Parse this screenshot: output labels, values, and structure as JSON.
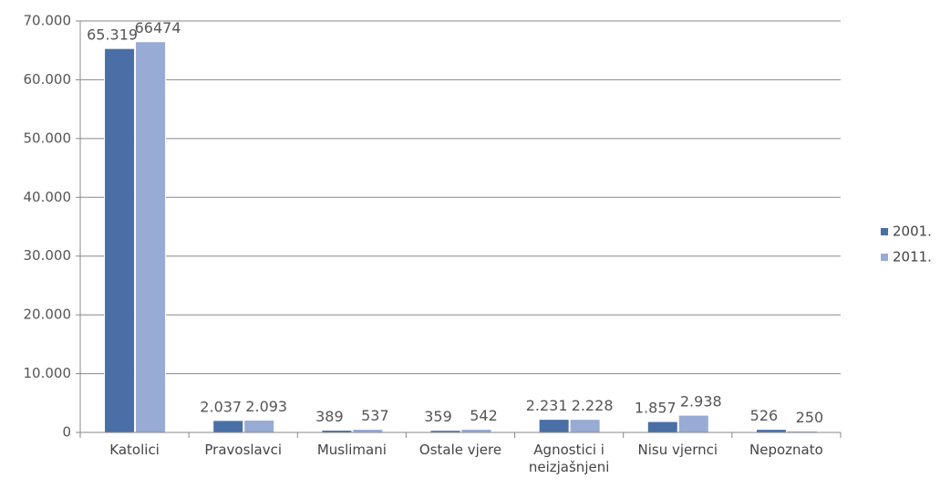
{
  "chart_data": {
    "type": "bar",
    "categories": [
      "Katolici",
      "Pravoslavci",
      "Muslimani",
      "Ostale vjere",
      "Agnostici i neizjašnjeni",
      "Nisu vjernci",
      "Nepoznato"
    ],
    "series": [
      {
        "name": "2001.",
        "color": "#4a6fa6",
        "values": [
          65319,
          2037,
          389,
          359,
          2231,
          1857,
          526
        ],
        "value_labels": [
          "65.319",
          "2.037",
          "389",
          "359",
          "2.231",
          "1.857",
          "526"
        ]
      },
      {
        "name": "2011.",
        "color": "#98abd4",
        "values": [
          66474,
          2093,
          537,
          542,
          2228,
          2938,
          250
        ],
        "value_labels": [
          "66474",
          "2.093",
          "537",
          "542",
          "2.228",
          "2.938",
          "250"
        ]
      }
    ],
    "ylim": [
      0,
      70000
    ],
    "yticks": [
      0,
      {
        "value": 10000,
        "label": "10.000"
      },
      {
        "value": 20000,
        "label": "20.000"
      },
      {
        "value": 30000,
        "label": "30.000"
      },
      {
        "value": 40000,
        "label": "40.000"
      },
      {
        "value": 50000,
        "label": "50.000"
      },
      {
        "value": 60000,
        "label": "60.000"
      },
      {
        "value": 70000,
        "label": "70.000"
      }
    ],
    "grid": true,
    "legend": "right"
  }
}
